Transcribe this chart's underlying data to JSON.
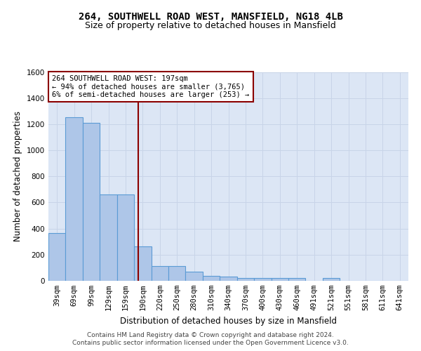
{
  "title1": "264, SOUTHWELL ROAD WEST, MANSFIELD, NG18 4LB",
  "title2": "Size of property relative to detached houses in Mansfield",
  "xlabel": "Distribution of detached houses by size in Mansfield",
  "ylabel": "Number of detached properties",
  "footnote1": "Contains HM Land Registry data © Crown copyright and database right 2024.",
  "footnote2": "Contains public sector information licensed under the Open Government Licence v3.0.",
  "bar_labels": [
    "39sqm",
    "69sqm",
    "99sqm",
    "129sqm",
    "159sqm",
    "190sqm",
    "220sqm",
    "250sqm",
    "280sqm",
    "310sqm",
    "340sqm",
    "370sqm",
    "400sqm",
    "430sqm",
    "460sqm",
    "491sqm",
    "521sqm",
    "551sqm",
    "581sqm",
    "611sqm",
    "641sqm"
  ],
  "bar_values": [
    365,
    1255,
    1210,
    660,
    660,
    265,
    115,
    115,
    70,
    40,
    30,
    20,
    20,
    20,
    20,
    0,
    20,
    0,
    0,
    0,
    0
  ],
  "bar_color": "#aec6e8",
  "bar_edgecolor": "#5b9bd5",
  "bar_linewidth": 0.8,
  "vline_color": "#8b0000",
  "vline_linewidth": 1.5,
  "annotation_text": "264 SOUTHWELL ROAD WEST: 197sqm\n← 94% of detached houses are smaller (3,765)\n6% of semi-detached houses are larger (253) →",
  "annotation_box_edgecolor": "#8b0000",
  "annotation_box_facecolor": "white",
  "ylim": [
    0,
    1600
  ],
  "yticks": [
    0,
    200,
    400,
    600,
    800,
    1000,
    1200,
    1400,
    1600
  ],
  "grid_color": "#c8d4e8",
  "plot_bg_color": "#dce6f5",
  "title1_fontsize": 10,
  "title2_fontsize": 9,
  "xlabel_fontsize": 8.5,
  "ylabel_fontsize": 8.5,
  "tick_fontsize": 7.5,
  "annotation_fontsize": 7.5,
  "footnote_fontsize": 6.5
}
